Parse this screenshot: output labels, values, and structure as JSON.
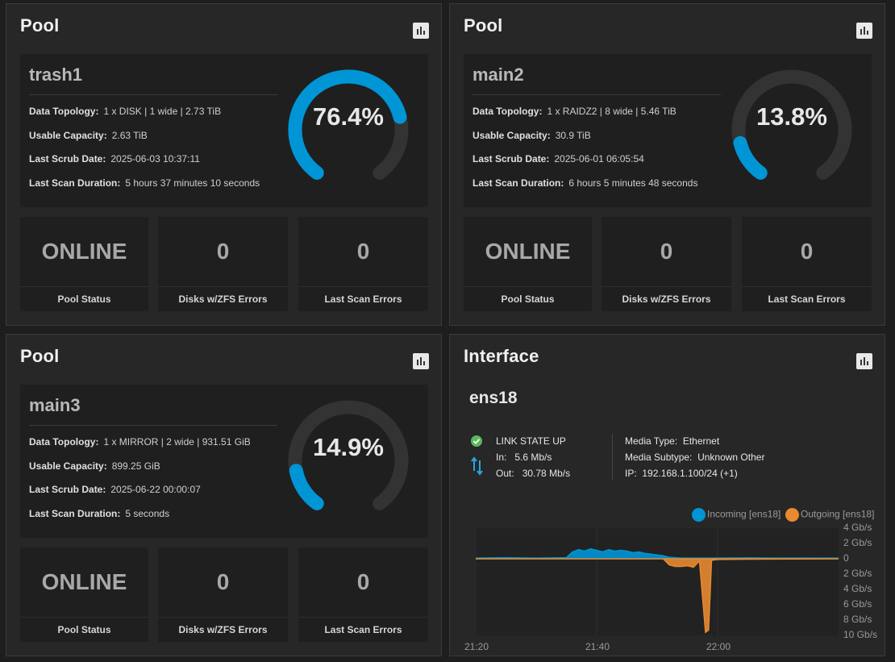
{
  "colors": {
    "accent": "#0095d5",
    "gauge_track": "#333333",
    "outgoing": "#e88a30",
    "ok": "#5cb85c"
  },
  "pools": [
    {
      "card_title": "Pool",
      "name": "trash1",
      "topology_label": "Data Topology:",
      "topology": "1 x DISK | 1 wide | 2.73 TiB",
      "capacity_label": "Usable Capacity:",
      "capacity": "2.63 TiB",
      "scrub_label": "Last Scrub Date:",
      "scrub": "2025-06-03 10:37:11",
      "duration_label": "Last Scan Duration:",
      "duration": "5 hours 37 minutes 10 seconds",
      "usage_percent": 76.4,
      "usage_text": "76.4%",
      "status": "ONLINE",
      "status_label": "Pool Status",
      "disk_errors": "0",
      "disk_errors_label": "Disks w/ZFS Errors",
      "scan_errors": "0",
      "scan_errors_label": "Last Scan Errors"
    },
    {
      "card_title": "Pool",
      "name": "main2",
      "topology_label": "Data Topology:",
      "topology": "1 x RAIDZ2 | 8 wide | 5.46 TiB",
      "capacity_label": "Usable Capacity:",
      "capacity": "30.9 TiB",
      "scrub_label": "Last Scrub Date:",
      "scrub": "2025-06-01 06:05:54",
      "duration_label": "Last Scan Duration:",
      "duration": "6 hours 5 minutes 48 seconds",
      "usage_percent": 13.8,
      "usage_text": "13.8%",
      "status": "ONLINE",
      "status_label": "Pool Status",
      "disk_errors": "0",
      "disk_errors_label": "Disks w/ZFS Errors",
      "scan_errors": "0",
      "scan_errors_label": "Last Scan Errors"
    },
    {
      "card_title": "Pool",
      "name": "main3",
      "topology_label": "Data Topology:",
      "topology": "1 x MIRROR | 2 wide | 931.51 GiB",
      "capacity_label": "Usable Capacity:",
      "capacity": "899.25 GiB",
      "scrub_label": "Last Scrub Date:",
      "scrub": "2025-06-22 00:00:07",
      "duration_label": "Last Scan Duration:",
      "duration": "5 seconds",
      "usage_percent": 14.9,
      "usage_text": "14.9%",
      "status": "ONLINE",
      "status_label": "Pool Status",
      "disk_errors": "0",
      "disk_errors_label": "Disks w/ZFS Errors",
      "scan_errors": "0",
      "scan_errors_label": "Last Scan Errors"
    }
  ],
  "interface": {
    "card_title": "Interface",
    "name": "ens18",
    "link_state": "LINK STATE UP",
    "in_label": "In:",
    "in_value": "5.6 Mb/s",
    "out_label": "Out:",
    "out_value": "30.78 Mb/s",
    "media_type_label": "Media Type:",
    "media_type": "Ethernet",
    "media_subtype_label": "Media Subtype:",
    "media_subtype": "Unknown Other",
    "ip_label": "IP:",
    "ip": "192.168.1.100/24 (+1)"
  },
  "chart_data": {
    "type": "area",
    "title": "",
    "legend": [
      "Incoming [ens18]",
      "Outgoing [ens18]"
    ],
    "x_ticks": [
      "21:20",
      "21:40",
      "22:00"
    ],
    "y_ticks": [
      "4 Gb/s",
      "2 Gb/s",
      "0",
      "2 Gb/s",
      "4 Gb/s",
      "6 Gb/s",
      "8 Gb/s",
      "10 Gb/s"
    ],
    "x_range_minutes": [
      0,
      60
    ],
    "ylim": [
      -10,
      4
    ],
    "ylabel": "Gb/s",
    "series": [
      {
        "name": "Incoming [ens18]",
        "points": [
          [
            0,
            0.1
          ],
          [
            5,
            0.15
          ],
          [
            10,
            0.1
          ],
          [
            15,
            0.15
          ],
          [
            16,
            0.9
          ],
          [
            17,
            1.2
          ],
          [
            18,
            1.0
          ],
          [
            19,
            1.3
          ],
          [
            20,
            1.1
          ],
          [
            21,
            0.9
          ],
          [
            22,
            1.2
          ],
          [
            23,
            1.0
          ],
          [
            24,
            1.1
          ],
          [
            25,
            1.0
          ],
          [
            26,
            0.8
          ],
          [
            27,
            0.9
          ],
          [
            28,
            0.7
          ],
          [
            29,
            0.6
          ],
          [
            30,
            0.5
          ],
          [
            31,
            0.4
          ],
          [
            32,
            0.2
          ],
          [
            34,
            0.1
          ],
          [
            40,
            0.1
          ],
          [
            45,
            0.12
          ],
          [
            50,
            0.1
          ],
          [
            55,
            0.1
          ],
          [
            60,
            0.1
          ]
        ]
      },
      {
        "name": "Outgoing [ens18]",
        "points": [
          [
            0,
            0
          ],
          [
            31,
            0
          ],
          [
            32,
            -0.8
          ],
          [
            33,
            -1.0
          ],
          [
            34,
            -1.0
          ],
          [
            35,
            -0.9
          ],
          [
            36,
            -1.1
          ],
          [
            37,
            -0.3
          ],
          [
            38,
            -9.6
          ],
          [
            38.5,
            -9.3
          ],
          [
            39,
            -0.2
          ],
          [
            40,
            -0.1
          ],
          [
            45,
            -0.05
          ],
          [
            60,
            0
          ]
        ]
      }
    ]
  }
}
